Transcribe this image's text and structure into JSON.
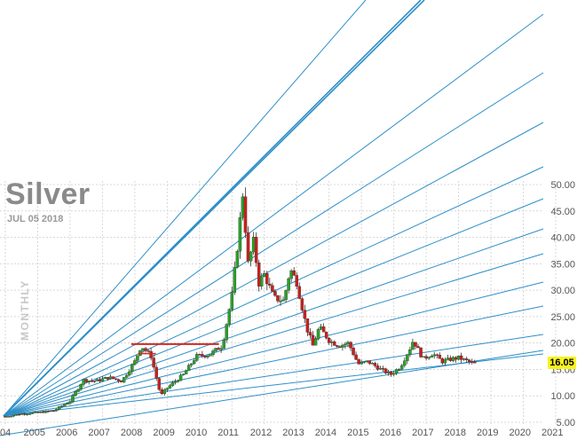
{
  "header": {
    "title": "Silver",
    "date": "JUL 05 2018",
    "period_label": "MONTHLY"
  },
  "price_badge": "16.05",
  "colors": {
    "up": "#2aa02a",
    "down": "#c8201e",
    "fan_line": "#2e8fc8",
    "grid": "#d8d8d8",
    "resistance": "#d9261c",
    "badge": "#f7f320"
  },
  "chart_data": {
    "type": "candlestick",
    "title": "Silver",
    "subtitle": "JUL 05 2018",
    "period": "MONTHLY",
    "x_ticks": [
      "04",
      "2005",
      "2006",
      "2007",
      "2008",
      "2009",
      "2010",
      "2011",
      "2012",
      "2013",
      "2014",
      "2015",
      "2016",
      "2017",
      "2018",
      "2019",
      "2020",
      "2021"
    ],
    "y_ticks": [
      "5.00",
      "10.00",
      "15.00",
      "20.00",
      "25.00",
      "30.00",
      "35.00",
      "40.00",
      "45.00",
      "50.00"
    ],
    "ylim": [
      5,
      50
    ],
    "xlim": [
      2004.0,
      2021.0
    ],
    "last_price": 16.05,
    "closes": [
      {
        "t": 2004.0,
        "c": 6.1
      },
      {
        "t": 2004.5,
        "c": 6.6
      },
      {
        "t": 2005.0,
        "c": 6.8
      },
      {
        "t": 2005.5,
        "c": 7.2
      },
      {
        "t": 2006.0,
        "c": 9.0
      },
      {
        "t": 2006.4,
        "c": 13.0
      },
      {
        "t": 2006.8,
        "c": 12.8
      },
      {
        "t": 2007.2,
        "c": 13.5
      },
      {
        "t": 2007.6,
        "c": 12.8
      },
      {
        "t": 2008.0,
        "c": 16.5
      },
      {
        "t": 2008.2,
        "c": 19.5
      },
      {
        "t": 2008.5,
        "c": 17.5
      },
      {
        "t": 2008.8,
        "c": 10.0
      },
      {
        "t": 2009.0,
        "c": 11.5
      },
      {
        "t": 2009.5,
        "c": 14.0
      },
      {
        "t": 2009.9,
        "c": 17.5
      },
      {
        "t": 2010.3,
        "c": 17.8
      },
      {
        "t": 2010.7,
        "c": 19.5
      },
      {
        "t": 2011.0,
        "c": 29.0
      },
      {
        "t": 2011.2,
        "c": 40.0
      },
      {
        "t": 2011.33,
        "c": 48.5
      },
      {
        "t": 2011.5,
        "c": 35.0
      },
      {
        "t": 2011.7,
        "c": 40.0
      },
      {
        "t": 2011.8,
        "c": 31.0
      },
      {
        "t": 2012.0,
        "c": 33.0
      },
      {
        "t": 2012.3,
        "c": 28.5
      },
      {
        "t": 2012.6,
        "c": 28.0
      },
      {
        "t": 2012.8,
        "c": 34.0
      },
      {
        "t": 2013.0,
        "c": 31.5
      },
      {
        "t": 2013.3,
        "c": 23.0
      },
      {
        "t": 2013.5,
        "c": 19.5
      },
      {
        "t": 2013.7,
        "c": 23.0
      },
      {
        "t": 2014.0,
        "c": 20.5
      },
      {
        "t": 2014.3,
        "c": 19.5
      },
      {
        "t": 2014.6,
        "c": 20.0
      },
      {
        "t": 2014.9,
        "c": 16.0
      },
      {
        "t": 2015.2,
        "c": 16.5
      },
      {
        "t": 2015.6,
        "c": 15.0
      },
      {
        "t": 2015.9,
        "c": 14.0
      },
      {
        "t": 2016.2,
        "c": 15.5
      },
      {
        "t": 2016.5,
        "c": 19.0
      },
      {
        "t": 2016.6,
        "c": 20.5
      },
      {
        "t": 2016.9,
        "c": 17.0
      },
      {
        "t": 2017.2,
        "c": 18.0
      },
      {
        "t": 2017.5,
        "c": 16.5
      },
      {
        "t": 2017.8,
        "c": 17.0
      },
      {
        "t": 2018.0,
        "c": 17.2
      },
      {
        "t": 2018.3,
        "c": 16.5
      },
      {
        "t": 2018.5,
        "c": 16.05
      }
    ],
    "resistance_level": {
      "price": 19.8,
      "from": 2008.0,
      "to": 2010.6
    },
    "grid": true,
    "fan_lines": true
  }
}
